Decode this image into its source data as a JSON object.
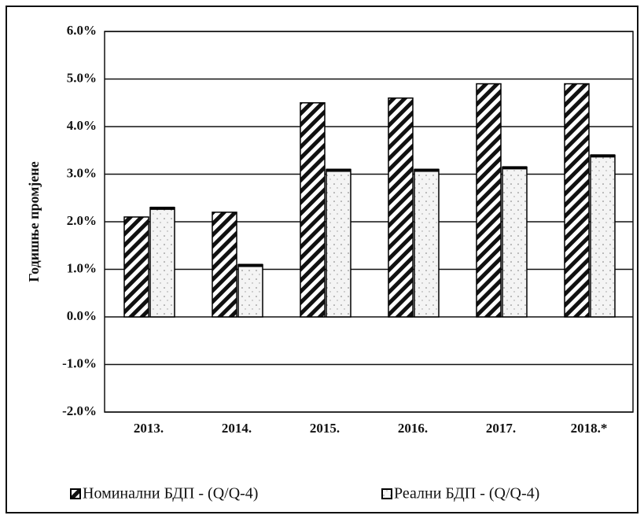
{
  "chart_data": {
    "type": "bar",
    "y_axis_label": "Годишње промјене",
    "categories": [
      "2013.",
      "2014.",
      "2015.",
      "2016.",
      "2017.",
      "2018.*"
    ],
    "series": [
      {
        "name": "Номинални БДП - (Q/Q-4)",
        "color": "#000000",
        "pattern": "diagonal",
        "values": [
          2.1,
          2.2,
          4.5,
          4.6,
          4.9,
          4.9
        ]
      },
      {
        "name": "Реални БДП - (Q/Q-4)",
        "color": "#000000",
        "pattern": "dots",
        "values": [
          2.3,
          1.1,
          3.1,
          3.1,
          3.15,
          3.4
        ]
      }
    ],
    "ylim": [
      -2,
      6
    ],
    "yticks": [
      {
        "value": -2,
        "label": "-2.0%"
      },
      {
        "value": -1,
        "label": "-1.0%"
      },
      {
        "value": 0,
        "label": "0.0%"
      },
      {
        "value": 1,
        "label": "1.0%"
      },
      {
        "value": 2,
        "label": "2.0%"
      },
      {
        "value": 3,
        "label": "3.0%"
      },
      {
        "value": 4,
        "label": "4.0%"
      },
      {
        "value": 5,
        "label": "5.0%"
      },
      {
        "value": 6,
        "label": "6.0%"
      }
    ],
    "grid": true
  }
}
